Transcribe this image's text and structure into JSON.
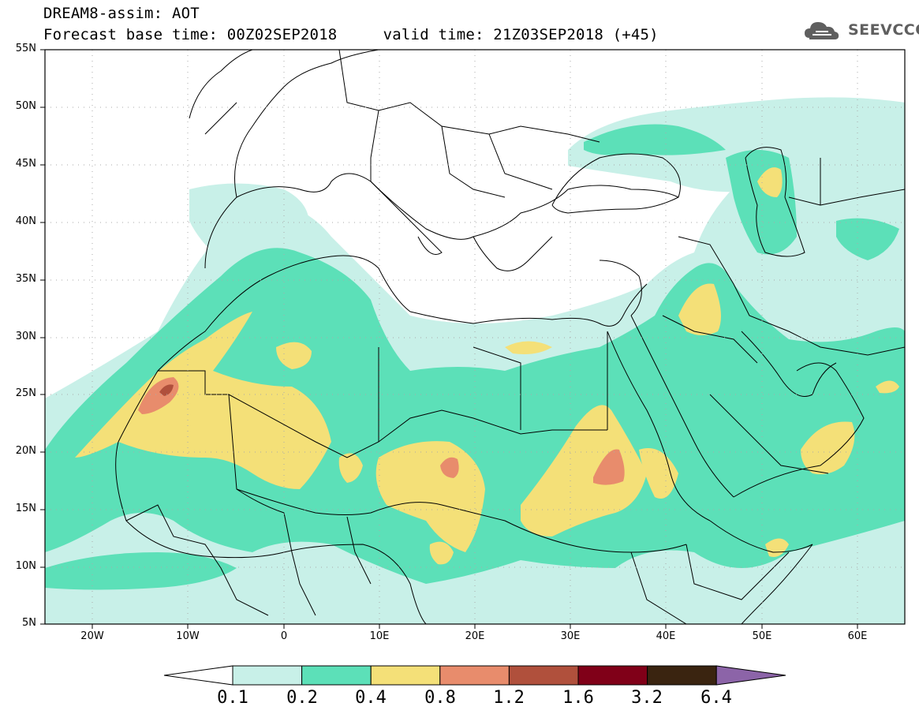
{
  "header": {
    "title": "DREAM8-assim: AOT",
    "subtitle": "Forecast base time: 00Z02SEP2018     valid time: 21Z03SEP2018 (+45)",
    "logo_text": "SEEVCCC"
  },
  "map": {
    "lat_labels": [
      "55N",
      "50N",
      "45N",
      "40N",
      "35N",
      "30N",
      "25N",
      "20N",
      "15N",
      "10N",
      "5N"
    ],
    "lon_labels": [
      "20W",
      "10W",
      "0",
      "10E",
      "20E",
      "30E",
      "40E",
      "50E",
      "60E"
    ]
  },
  "colorbar": {
    "levels": [
      "0.1",
      "0.2",
      "0.4",
      "0.8",
      "1.2",
      "1.6",
      "3.2",
      "6.4"
    ],
    "colors": [
      "#ffffff",
      "#c8f0e8",
      "#5ce0b8",
      "#f4e078",
      "#e88c6c",
      "#b0503c",
      "#800018",
      "#3a2410",
      "#8c64a8"
    ]
  },
  "colors": {
    "aot_0_1_0_2": "#c8f0e8",
    "aot_0_2_0_4": "#5ce0b8",
    "aot_0_4_0_8": "#f4e078",
    "aot_0_8_1_2": "#e88c6c",
    "aot_1_2_1_6": "#b0503c"
  }
}
